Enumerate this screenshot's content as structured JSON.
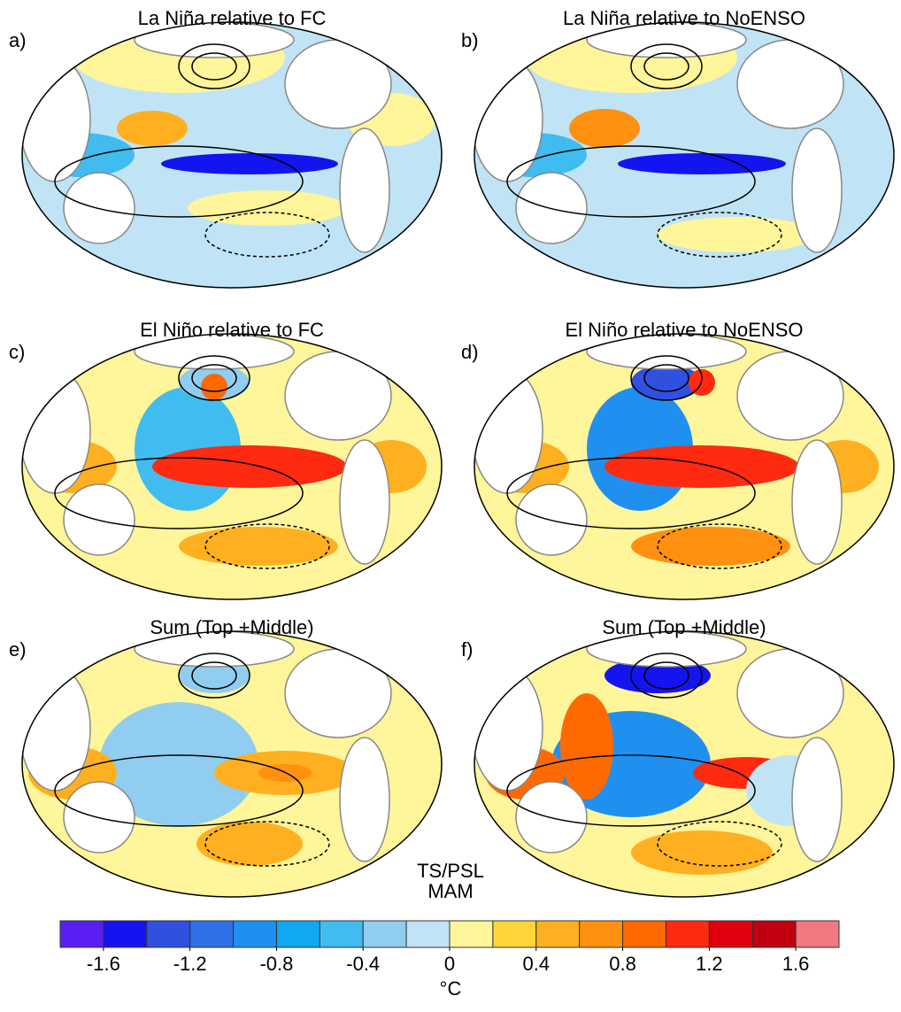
{
  "panels": [
    {
      "label": "a)",
      "title": "La Niña relative to FC"
    },
    {
      "label": "b)",
      "title": "La Niña relative to NoENSO"
    },
    {
      "label": "c)",
      "title": "El Niño relative to FC"
    },
    {
      "label": "d)",
      "title": "El Niño relative to NoENSO"
    },
    {
      "label": "e)",
      "title": "Sum (Top +Middle)"
    },
    {
      "label": "f)",
      "title": "Sum (Top +Middle)"
    }
  ],
  "annotation": [
    "TS/PSL",
    "MAM"
  ],
  "colorbar": {
    "bounds": [
      -1.8,
      -1.6,
      -1.4,
      -1.2,
      -1.0,
      -0.8,
      -0.6,
      -0.4,
      -0.2,
      0,
      0.2,
      0.4,
      0.6,
      0.8,
      1.0,
      1.2,
      1.4,
      1.6,
      1.8
    ],
    "colors": [
      "#5a1ff0",
      "#1414f0",
      "#3050e0",
      "#2f6fe8",
      "#2090f0",
      "#10a8f0",
      "#40bcf0",
      "#90cdf0",
      "#c0e4f5",
      "#fff59a",
      "#ffd63a",
      "#ffb020",
      "#ff9010",
      "#ff6a00",
      "#ff2a10",
      "#e00010",
      "#c00010",
      "#f07880"
    ],
    "xlim": [
      -1.8,
      1.8
    ],
    "ticks": [
      -1.6,
      -1.2,
      -0.8,
      -0.4,
      0,
      0.4,
      0.8,
      1.2,
      1.6
    ],
    "unit": "°C"
  }
}
